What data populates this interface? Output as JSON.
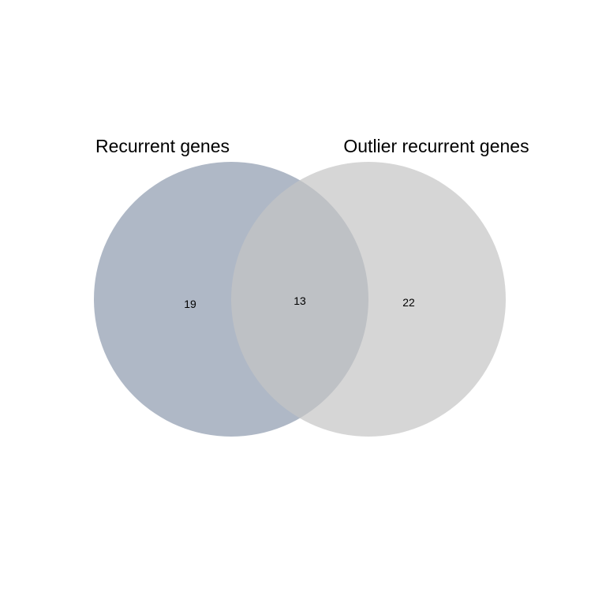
{
  "venn": {
    "sets": [
      {
        "label": "Recurrent genes",
        "color": "#8d9aae",
        "opacity": 0.7
      },
      {
        "label": "Outlier recurrent genes",
        "color": "#c4c4c4",
        "opacity": 0.7
      }
    ],
    "regions": {
      "only_a": "19",
      "both": "13",
      "only_b": "22"
    }
  }
}
